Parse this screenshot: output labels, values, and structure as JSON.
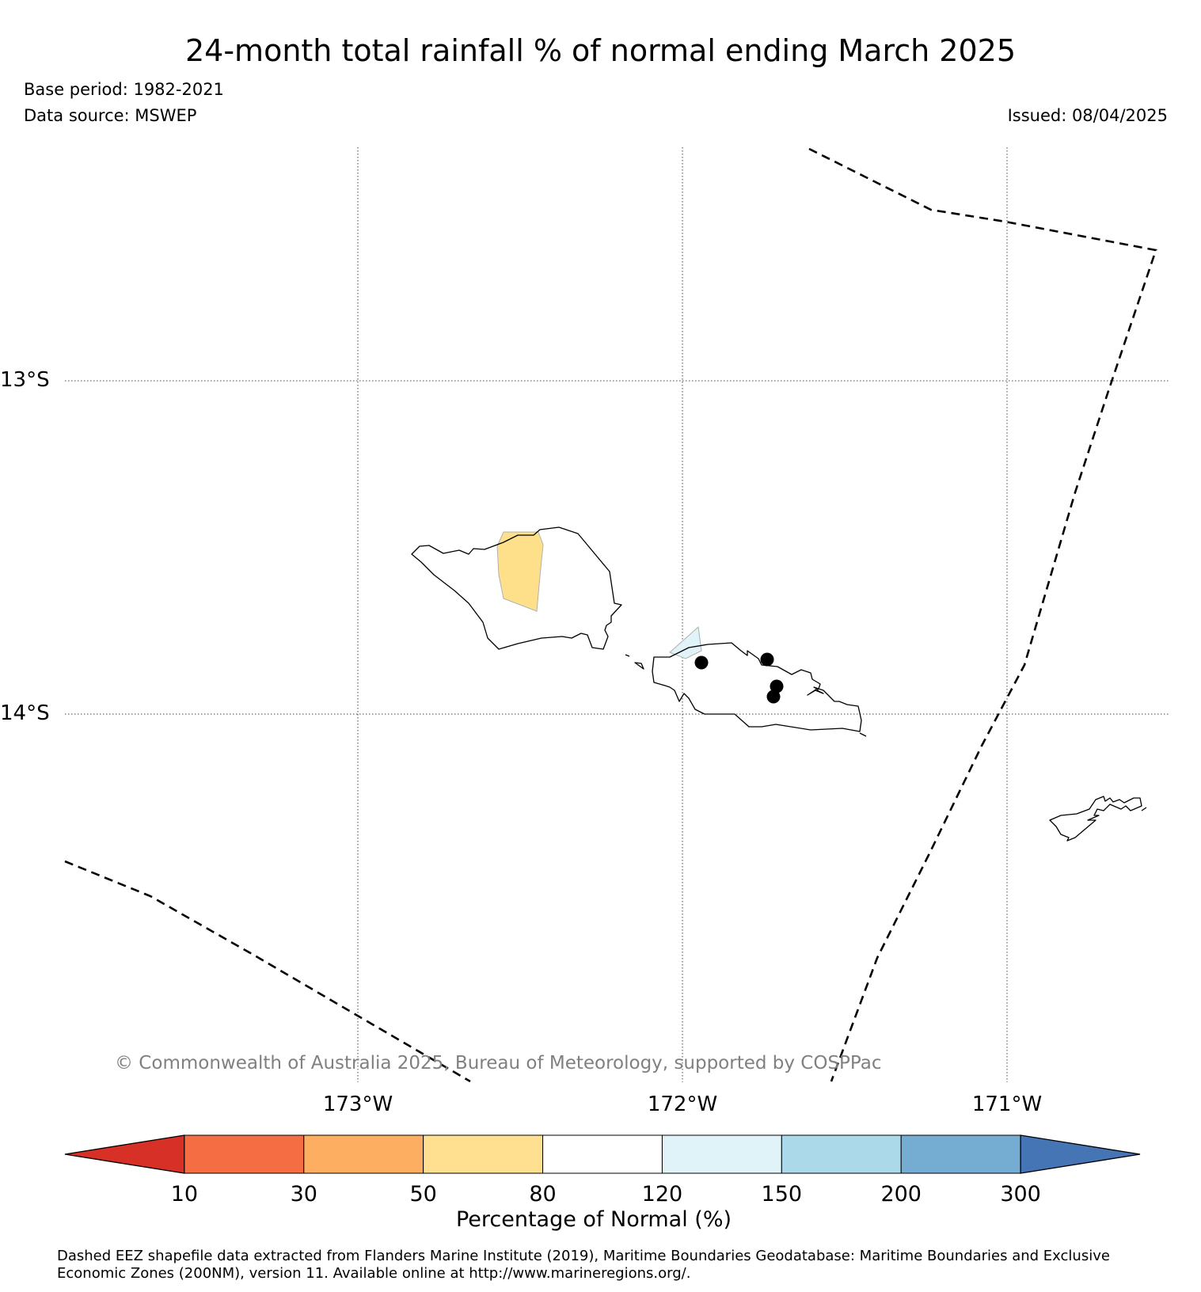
{
  "header": {
    "title": "24-month total rainfall % of normal ending March 2025",
    "base_period": "Base period: 1982-2021",
    "data_source": "Data source: MSWEP",
    "issued": "Issued: 08/04/2025"
  },
  "map": {
    "lat_labels": [
      "13°S",
      "14°S"
    ],
    "lon_labels": [
      "173°W",
      "172°W",
      "171°W"
    ],
    "copyright": "© Commonwealth of Australia 2025, Bureau of Meteorology, supported by COSPPac",
    "colors": {
      "dry_patch": "#fee08b",
      "wet_patch": "#e0f3f8",
      "coast": "#000000",
      "eez_boundary": "#000000",
      "station": "#000000"
    }
  },
  "legend": {
    "title": "Percentage of Normal (%)",
    "ticks": [
      "10",
      "30",
      "50",
      "80",
      "120",
      "150",
      "200",
      "300"
    ],
    "colors": [
      "#d73027",
      "#f46d43",
      "#fdae61",
      "#fee090",
      "#ffffff",
      "#e0f3f8",
      "#abd9e9",
      "#74add1",
      "#4575b4"
    ]
  },
  "footer": {
    "line1": "Dashed EEZ shapefile data extracted from Flanders Marine Institute (2019), Maritime Boundaries Geodatabase: Maritime Boundaries and Exclusive",
    "line2": "Economic Zones (200NM), version 11. Available online at http://www.marineregions.org/."
  }
}
